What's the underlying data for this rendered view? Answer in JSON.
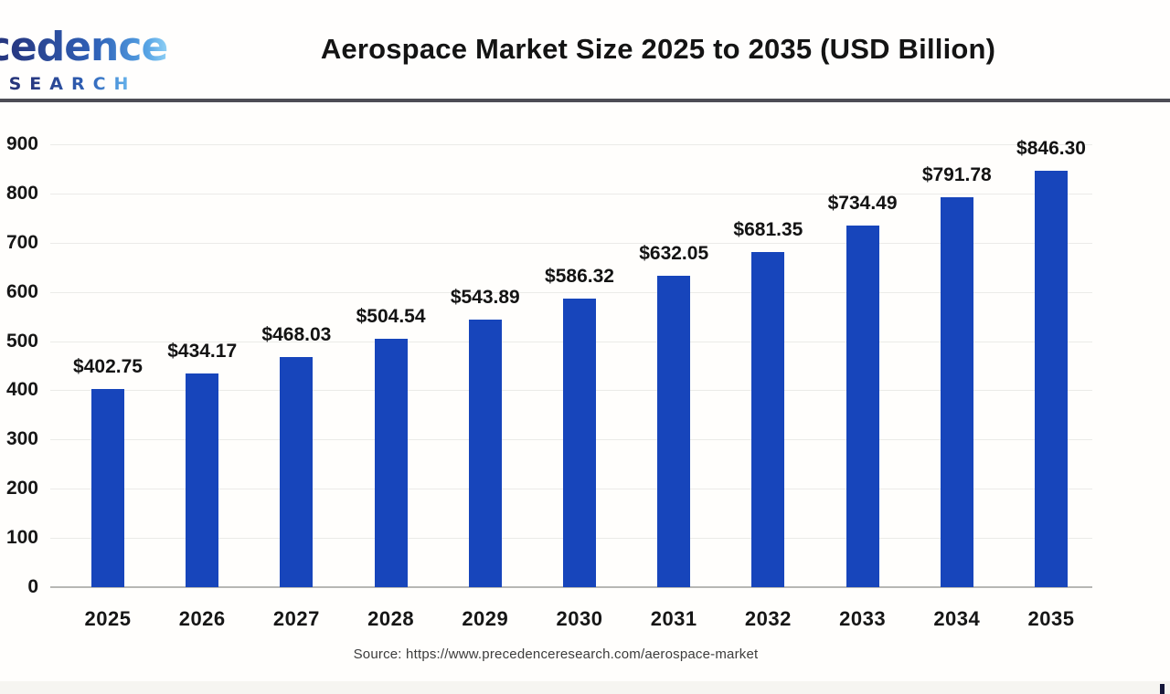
{
  "header": {
    "logo": {
      "line1": "Precedence",
      "line2": "RESEARCH"
    },
    "title": "Aerospace Market Size 2025 to 2035 (USD Billion)"
  },
  "chart_data": {
    "type": "bar",
    "title": "Aerospace Market Size 2025 to 2035 (USD Billion)",
    "categories": [
      "2025",
      "2026",
      "2027",
      "2028",
      "2029",
      "2030",
      "2031",
      "2032",
      "2033",
      "2034",
      "2035"
    ],
    "values": [
      402.75,
      434.17,
      468.03,
      504.54,
      543.89,
      586.32,
      632.05,
      681.35,
      734.49,
      791.78,
      846.3
    ],
    "data_labels": [
      "$402.75",
      "$434.17",
      "$468.03",
      "$504.54",
      "$543.89",
      "$586.32",
      "$632.05",
      "$681.35",
      "$734.49",
      "$791.78",
      "$846.30"
    ],
    "xlabel": "",
    "ylabel": "",
    "ylim": [
      0,
      900
    ],
    "yticks": [
      0,
      100,
      200,
      300,
      400,
      500,
      600,
      700,
      800,
      900
    ],
    "grid": true,
    "legend": "none",
    "bar_color": "#1745bb"
  },
  "footer": {
    "source": "Source: https://www.precedenceresearch.com/aerospace-market"
  },
  "colors": {
    "bar": "#1745bb",
    "gridline": "#ebebe8",
    "axis_line": "#b7b7b4",
    "header_divider": "#4d4d55",
    "title_text": "#141414",
    "logo_navy": "#232a66",
    "logo_light_blue": "#8fd0f5"
  }
}
